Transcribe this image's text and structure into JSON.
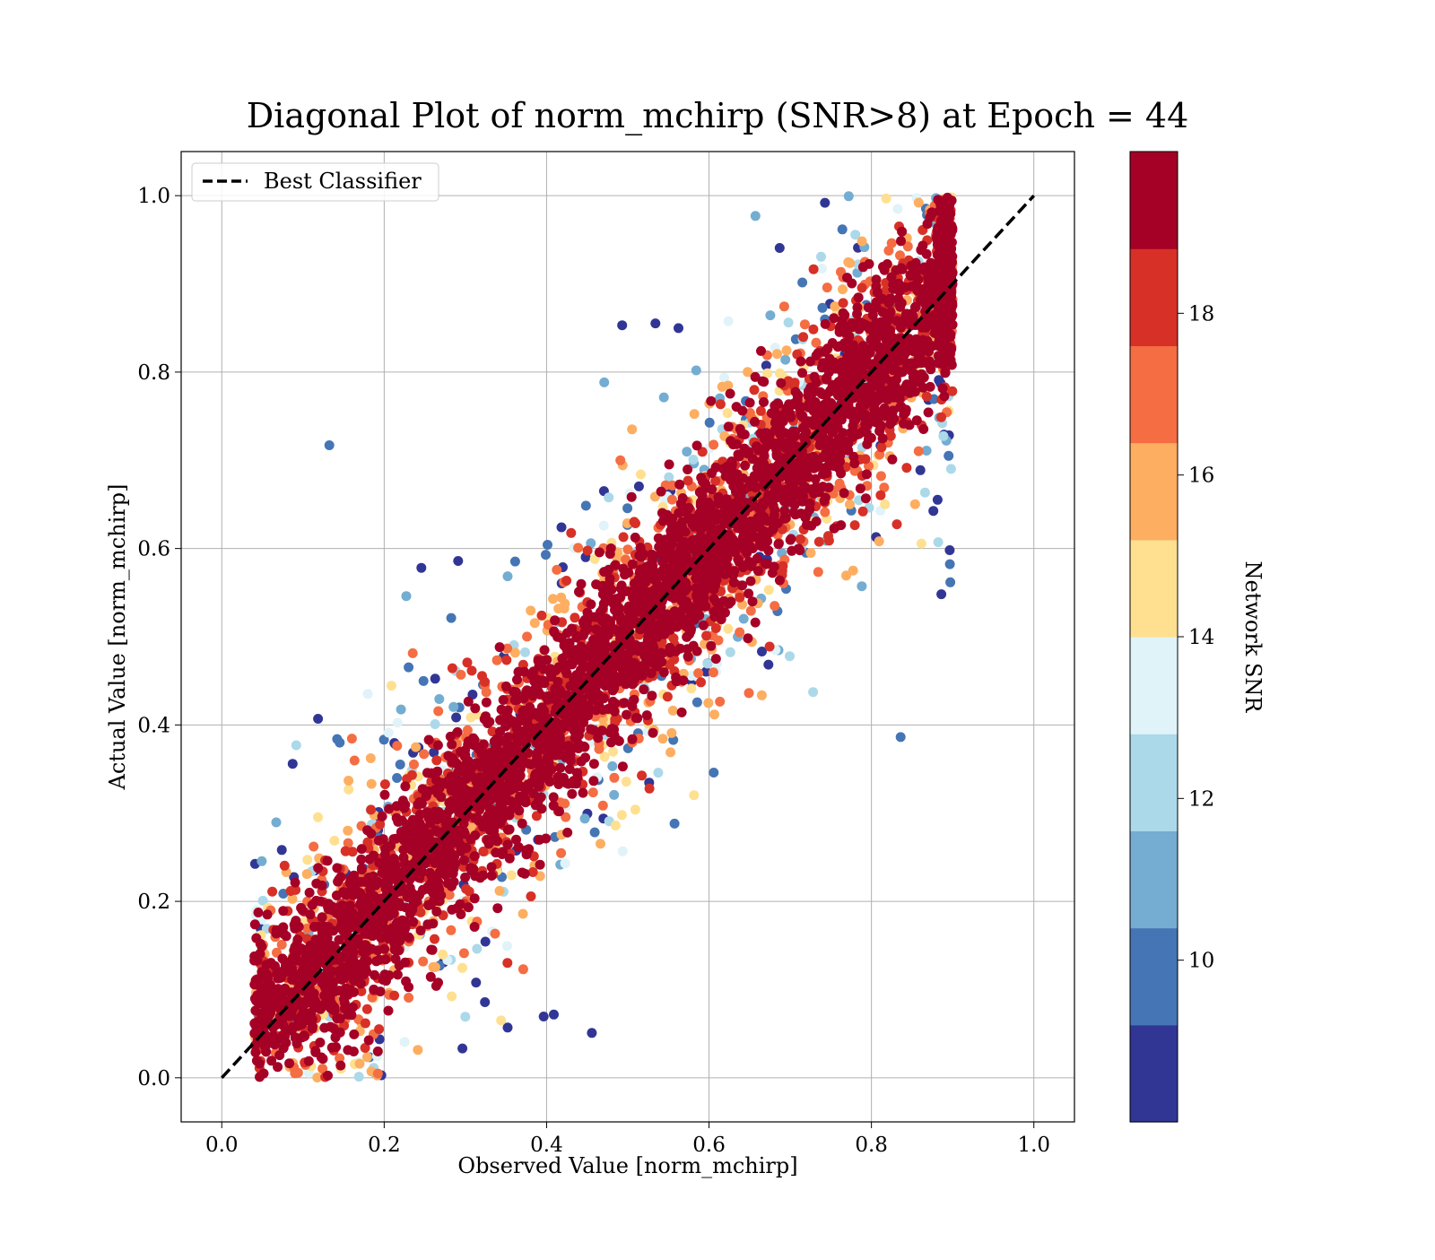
{
  "chart_data": {
    "type": "scatter",
    "title": "Diagonal Plot of norm_mchirp (SNR>8) at Epoch = 44",
    "xlabel": "Observed Value [norm_mchirp]",
    "ylabel": "Actual Value [norm_mchirp]",
    "xlim": [
      -0.05,
      1.05
    ],
    "ylim": [
      -0.05,
      1.05
    ],
    "xticks": [
      "0.0",
      "0.2",
      "0.4",
      "0.6",
      "0.8",
      "1.0"
    ],
    "yticks": [
      "0.0",
      "0.2",
      "0.4",
      "0.6",
      "0.8",
      "1.0"
    ],
    "grid": true,
    "legend": {
      "position": "top-left",
      "entries": [
        "Best Classifier"
      ]
    },
    "reference_line": {
      "name": "Best Classifier",
      "style": "dashed",
      "color": "#000000",
      "x": [
        0.0,
        1.0
      ],
      "y": [
        0.0,
        1.0
      ]
    },
    "colorbar": {
      "label": "Network SNR",
      "range": [
        8,
        20
      ],
      "ticks": [
        "10",
        "12",
        "14",
        "16",
        "18"
      ],
      "colormap": "RdYlBu_r",
      "colors": [
        "#313695",
        "#4575b4",
        "#74add1",
        "#abd9e9",
        "#e0f3f8",
        "#fee090",
        "#fdae61",
        "#f46d43",
        "#d73027",
        "#a50026"
      ]
    },
    "scatter_distribution": {
      "x_range": [
        0.04,
        0.9
      ],
      "y_range": [
        0.0,
        1.0
      ],
      "high_snr_band_halfwidth": 0.12,
      "low_snr_spread_halfwidth": 0.3,
      "approx_point_count": 6000
    }
  }
}
